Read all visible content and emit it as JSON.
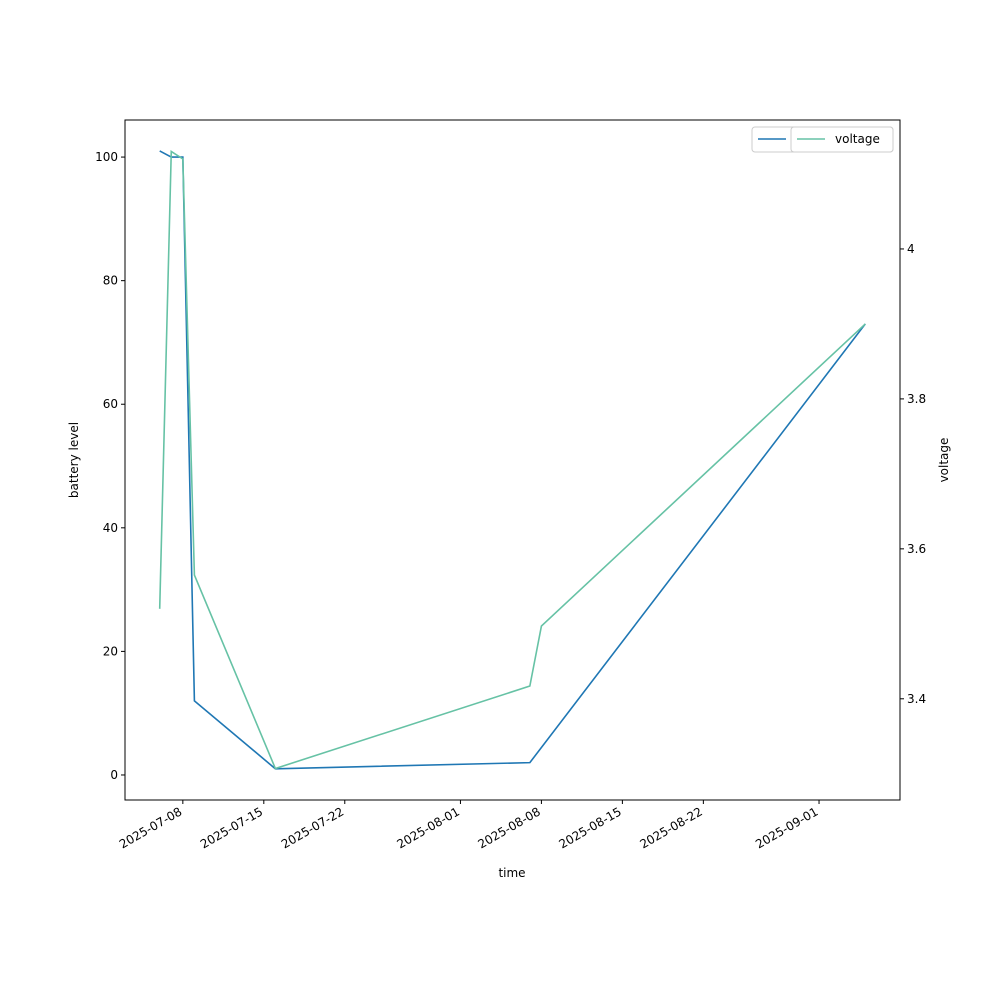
{
  "chart_data": {
    "type": "line",
    "xlabel": "time",
    "ylabel": "battery level",
    "y2label": "voltage",
    "xlim": [
      "2025-07-03",
      "2025-09-08"
    ],
    "xticks": [
      "2025-07-08",
      "2025-07-15",
      "2025-07-22",
      "2025-08-01",
      "2025-08-08",
      "2025-08-15",
      "2025-08-22",
      "2025-09-01"
    ],
    "ylim": [
      -4.05,
      106
    ],
    "yticks": [
      0,
      20,
      40,
      60,
      80,
      100
    ],
    "y2lim": [
      3.265,
      4.172
    ],
    "y2ticks": [
      3.4,
      3.6,
      3.8,
      4.0
    ],
    "legend": "upper right",
    "series": [
      {
        "name": "battery level",
        "color": "#1f77b4",
        "axis": "y",
        "x": [
          "2025-07-06",
          "2025-07-07",
          "2025-07-08",
          "2025-07-09",
          "2025-07-16",
          "2025-08-07",
          "2025-09-05"
        ],
        "values": [
          101,
          100,
          100,
          12,
          1,
          2,
          73
        ]
      },
      {
        "name": "voltage",
        "color": "#66c2a5",
        "axis": "y2",
        "x": [
          "2025-07-06",
          "2025-07-07",
          "2025-07-08",
          "2025-07-09",
          "2025-07-16",
          "2025-08-07",
          "2025-08-08",
          "2025-09-05"
        ],
        "values": [
          3.52,
          4.13,
          4.12,
          3.565,
          3.307,
          3.417,
          3.497,
          3.9
        ]
      }
    ]
  }
}
